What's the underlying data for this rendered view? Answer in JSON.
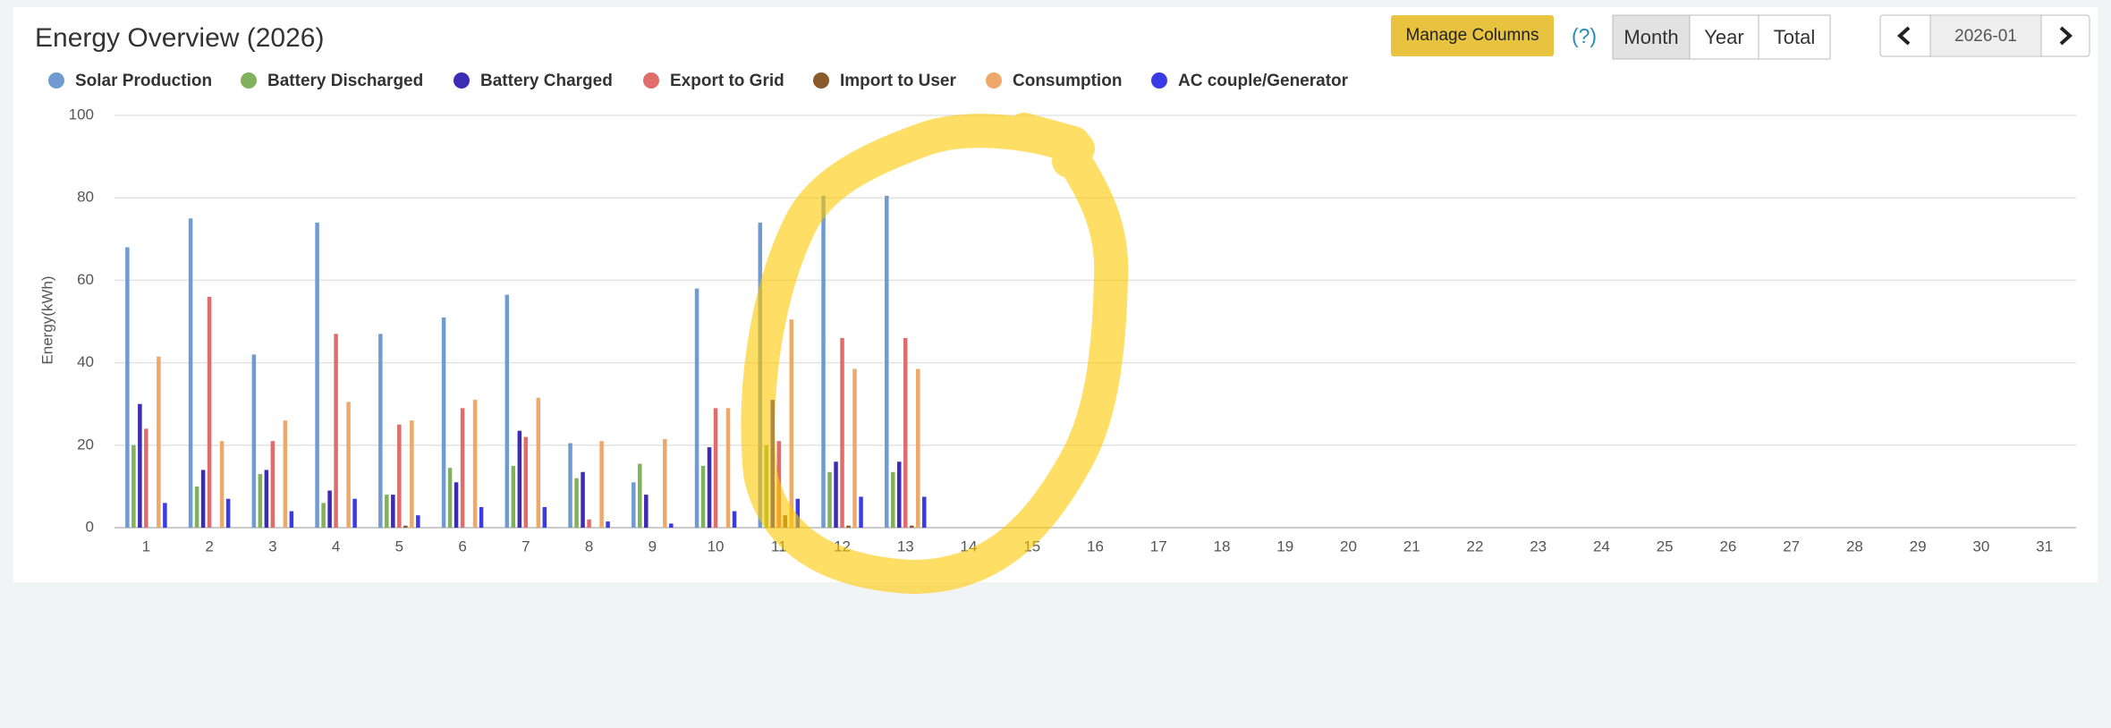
{
  "chart_data": {
    "type": "bar",
    "title": "Energy Overview (2026)",
    "y_label": "Energy(kWh)",
    "categories": [
      "1",
      "2",
      "3",
      "4",
      "5",
      "6",
      "7",
      "8",
      "9",
      "10",
      "11",
      "12",
      "13",
      "14",
      "15",
      "16",
      "17",
      "18",
      "19",
      "20",
      "21",
      "22",
      "23",
      "24",
      "25",
      "26",
      "27",
      "28",
      "29",
      "30",
      "31"
    ],
    "series": [
      {
        "name": "Solar Production",
        "color": "#6f9bd1",
        "values": [
          68,
          75,
          42,
          74,
          47,
          51,
          56.5,
          20.5,
          11,
          58,
          74,
          80.5,
          80.5,
          null,
          null,
          null,
          null,
          null,
          null,
          null,
          null,
          null,
          null,
          null,
          null,
          null,
          null,
          null,
          null,
          null,
          null
        ]
      },
      {
        "name": "Battery Discharged",
        "color": "#80b25c",
        "values": [
          20,
          10,
          13,
          6,
          8,
          14.5,
          15,
          12,
          15.5,
          15,
          20,
          13.5,
          13.5,
          null,
          null,
          null,
          null,
          null,
          null,
          null,
          null,
          null,
          null,
          null,
          null,
          null,
          null,
          null,
          null,
          null,
          null
        ]
      },
      {
        "name": "Battery Charged",
        "color": "#3b2bb5",
        "values": [
          30,
          14,
          14,
          9,
          8,
          11,
          23.5,
          13.5,
          8,
          19.5,
          31,
          16,
          16,
          null,
          null,
          null,
          null,
          null,
          null,
          null,
          null,
          null,
          null,
          null,
          null,
          null,
          null,
          null,
          null,
          null,
          null
        ]
      },
      {
        "name": "Export to Grid",
        "color": "#e06c6c",
        "values": [
          24,
          56,
          21,
          47,
          25,
          29,
          22,
          2,
          0,
          29,
          21,
          46,
          46,
          null,
          null,
          null,
          null,
          null,
          null,
          null,
          null,
          null,
          null,
          null,
          null,
          null,
          null,
          null,
          null,
          null,
          null
        ]
      },
      {
        "name": "Import to User",
        "color": "#8b5a2b",
        "values": [
          0,
          0,
          0,
          0,
          0.5,
          0,
          0,
          0,
          0,
          0,
          3,
          0.5,
          0.5,
          null,
          null,
          null,
          null,
          null,
          null,
          null,
          null,
          null,
          null,
          null,
          null,
          null,
          null,
          null,
          null,
          null,
          null
        ]
      },
      {
        "name": "Consumption",
        "color": "#eea86a",
        "values": [
          41.5,
          21,
          26,
          30.5,
          26,
          31,
          31.5,
          21,
          21.5,
          29,
          50.5,
          38.5,
          38.5,
          null,
          null,
          null,
          null,
          null,
          null,
          null,
          null,
          null,
          null,
          null,
          null,
          null,
          null,
          null,
          null,
          null,
          null
        ]
      },
      {
        "name": "AC couple/Generator",
        "color": "#3a3ae6",
        "values": [
          6,
          7,
          4,
          7,
          3,
          5,
          5,
          1.5,
          1,
          4,
          7,
          7.5,
          7.5,
          null,
          null,
          null,
          null,
          null,
          null,
          null,
          null,
          null,
          null,
          null,
          null,
          null,
          null,
          null,
          null,
          null,
          null
        ]
      }
    ],
    "ylim": [
      0,
      100
    ],
    "yticks": [
      0,
      20,
      40,
      60,
      80,
      100
    ],
    "grid": true
  },
  "controls": {
    "manage_columns": "Manage Columns",
    "help": "(?)",
    "periods": [
      "Month",
      "Year",
      "Total"
    ],
    "active_period": "Month",
    "date": "2026-01"
  }
}
